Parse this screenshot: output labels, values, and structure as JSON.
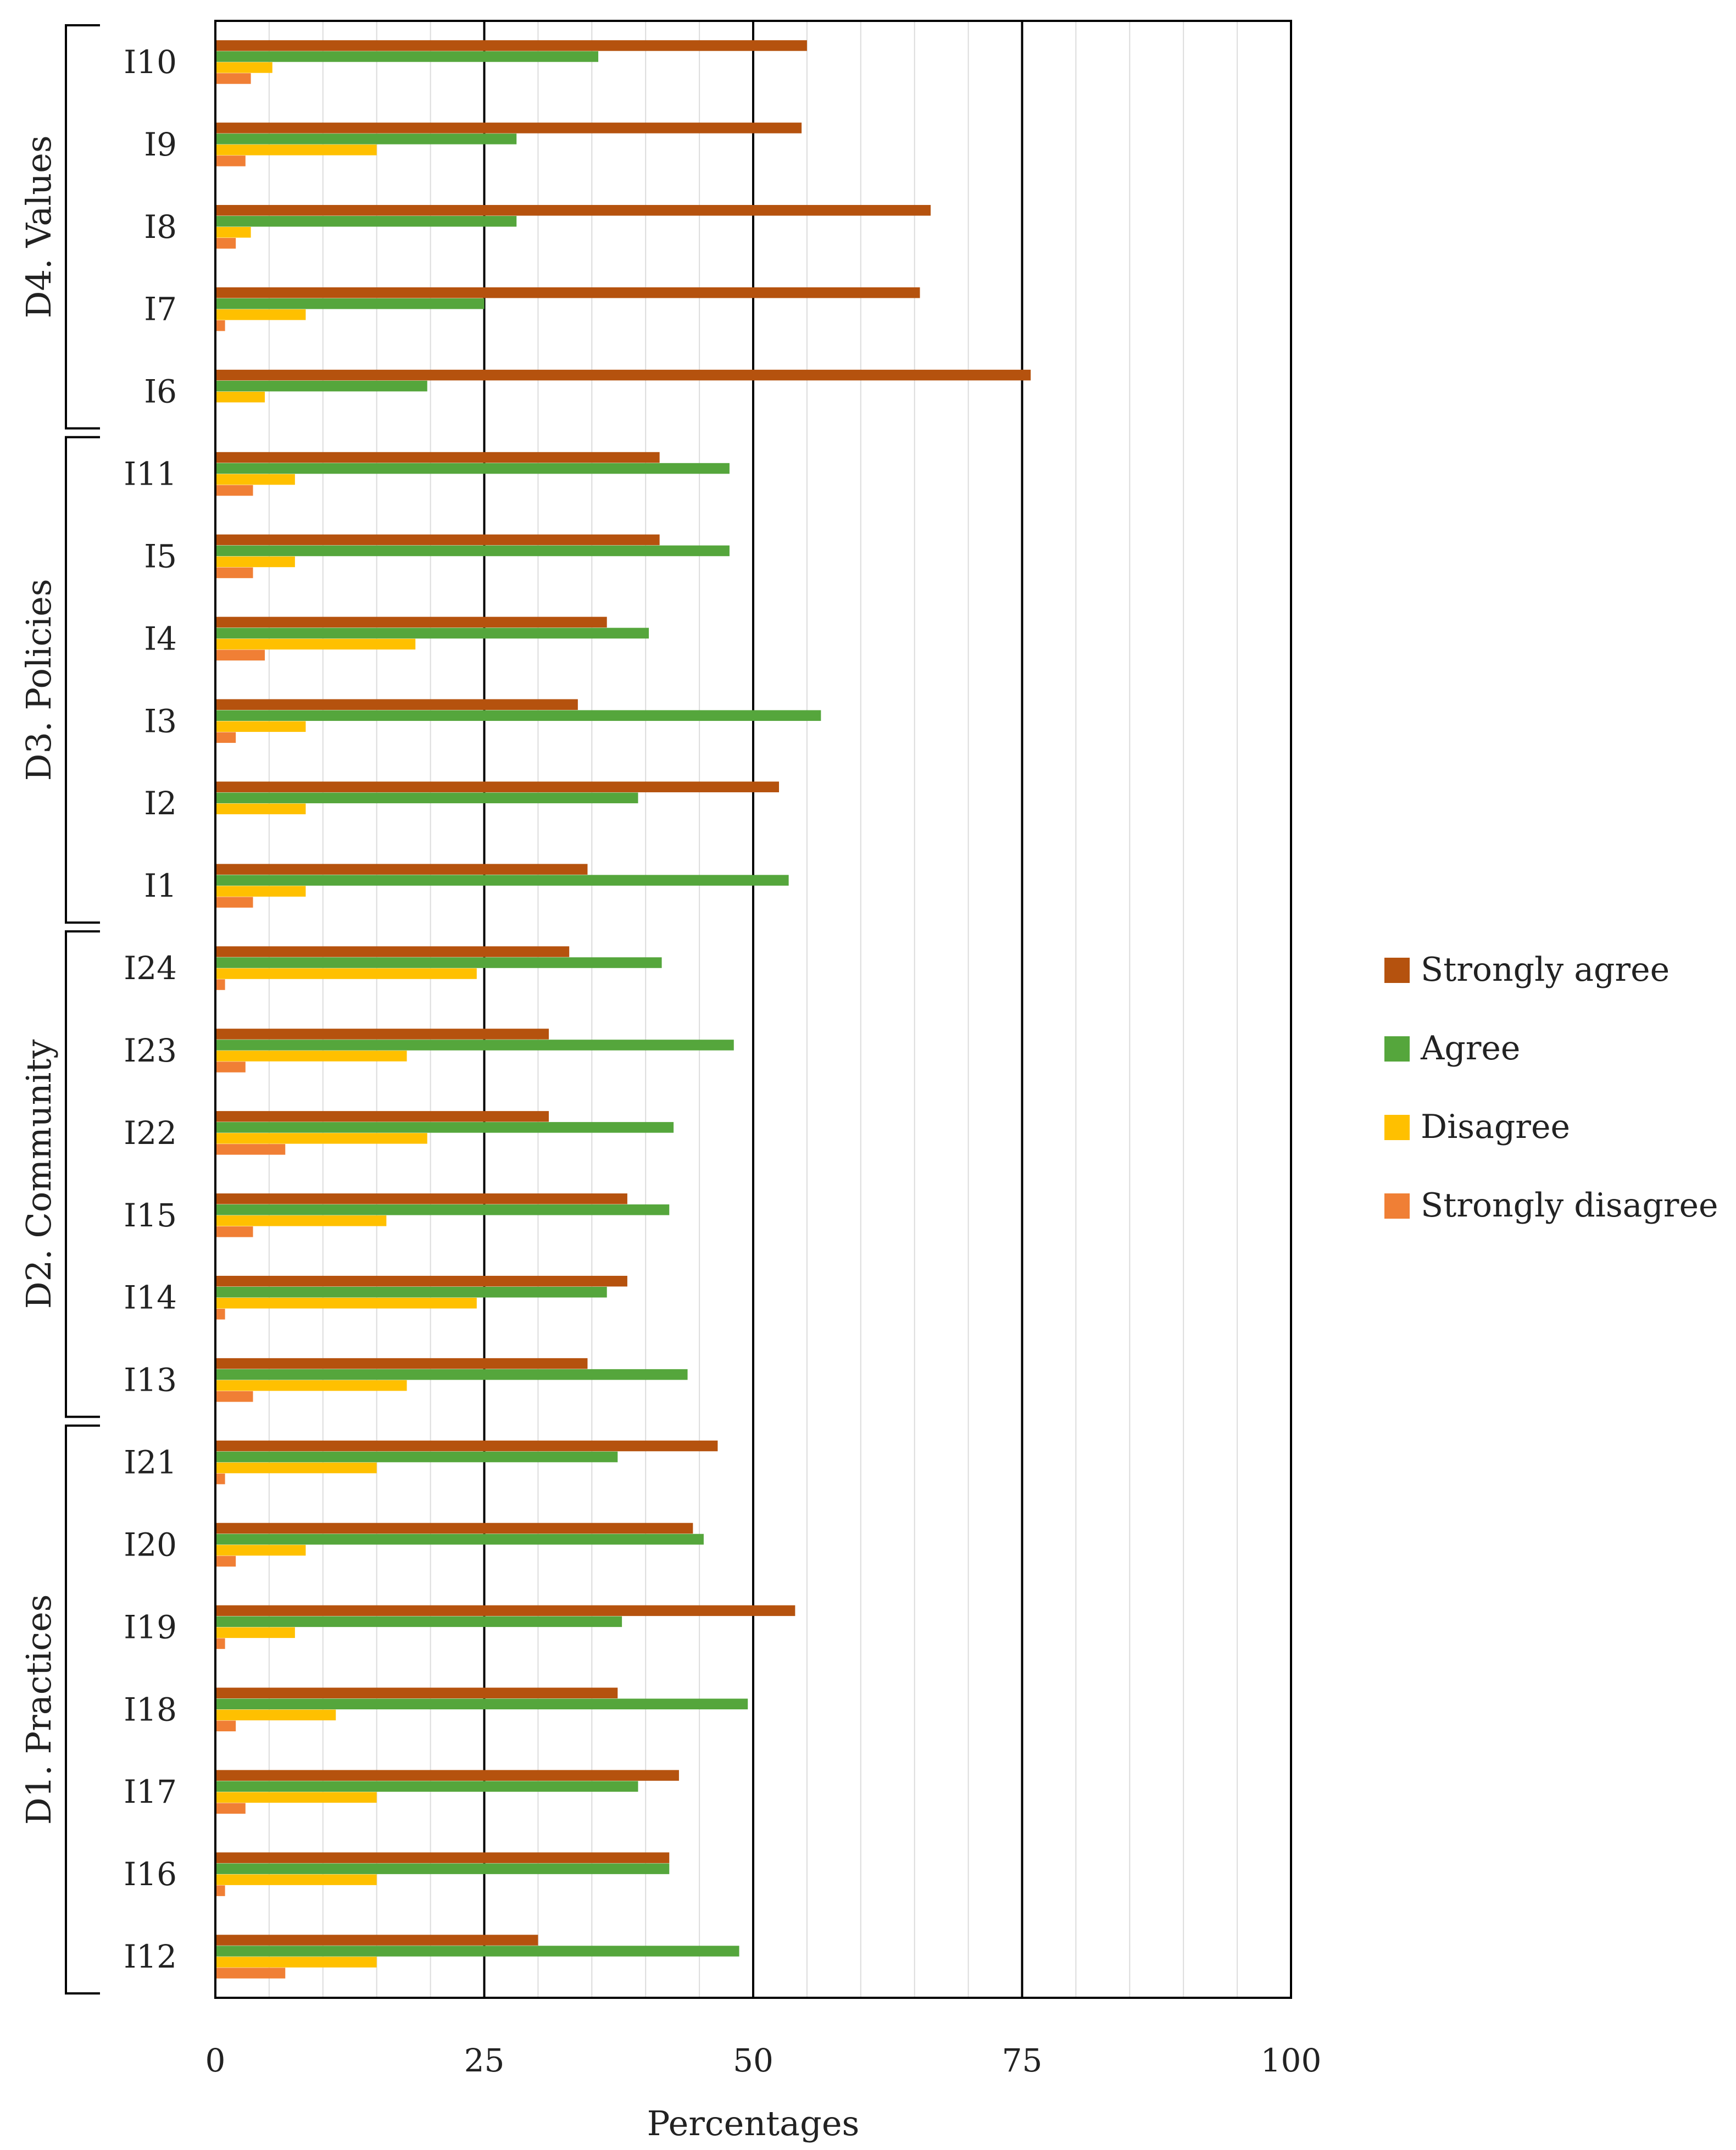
{
  "chart_data": {
    "type": "bar",
    "orientation": "horizontal",
    "xlabel": "Percentages",
    "xlim": [
      0,
      100
    ],
    "major_ticks": [
      0,
      25,
      50,
      75,
      100
    ],
    "minor_grid_step": 5,
    "categories": [
      "I10",
      "I9",
      "I8",
      "I7",
      "I6",
      "I11",
      "I5",
      "I4",
      "I3",
      "I2",
      "I1",
      "I24",
      "I23",
      "I22",
      "I15",
      "I14",
      "I13",
      "I21",
      "I20",
      "I19",
      "I18",
      "I17",
      "I16",
      "I12"
    ],
    "groups": [
      {
        "label": "D4. Values",
        "first": 0,
        "last": 4
      },
      {
        "label": "D3. Policies",
        "first": 5,
        "last": 10
      },
      {
        "label": "D2. Community",
        "first": 11,
        "last": 16
      },
      {
        "label": "D1. Practices",
        "first": 17,
        "last": 23
      }
    ],
    "series": [
      {
        "name": "Strongly agree",
        "color": "#b5520e",
        "values": [
          55,
          54.5,
          66.5,
          65.5,
          75.8,
          41.3,
          41.3,
          36.4,
          33.7,
          52.4,
          34.6,
          32.9,
          31,
          31,
          38.3,
          38.3,
          34.6,
          46.7,
          44.4,
          53.9,
          37.4,
          43.1,
          42.2,
          30
        ]
      },
      {
        "name": "Agree",
        "color": "#55a63c",
        "values": [
          35.6,
          28,
          28,
          25,
          19.7,
          47.8,
          47.8,
          40.3,
          56.3,
          39.3,
          53.3,
          41.5,
          48.2,
          42.6,
          42.2,
          36.4,
          43.9,
          37.4,
          45.4,
          37.8,
          49.5,
          39.3,
          42.2,
          48.7
        ]
      },
      {
        "name": "Disagree",
        "color": "#ffc000",
        "values": [
          5.3,
          15,
          3.3,
          8.4,
          4.6,
          7.4,
          7.4,
          18.6,
          8.4,
          8.4,
          8.4,
          24.3,
          17.8,
          19.7,
          15.9,
          24.3,
          17.8,
          15,
          8.4,
          7.4,
          11.2,
          15,
          15,
          15
        ]
      },
      {
        "name": "Strongly disagree",
        "color": "#f07f35",
        "values": [
          3.3,
          2.8,
          1.9,
          0.9,
          0,
          3.5,
          3.5,
          4.6,
          1.9,
          0,
          3.5,
          0.9,
          2.8,
          6.5,
          3.5,
          0.9,
          3.5,
          0.9,
          1.9,
          0.9,
          1.9,
          2.8,
          0.9,
          6.5
        ]
      }
    ]
  }
}
